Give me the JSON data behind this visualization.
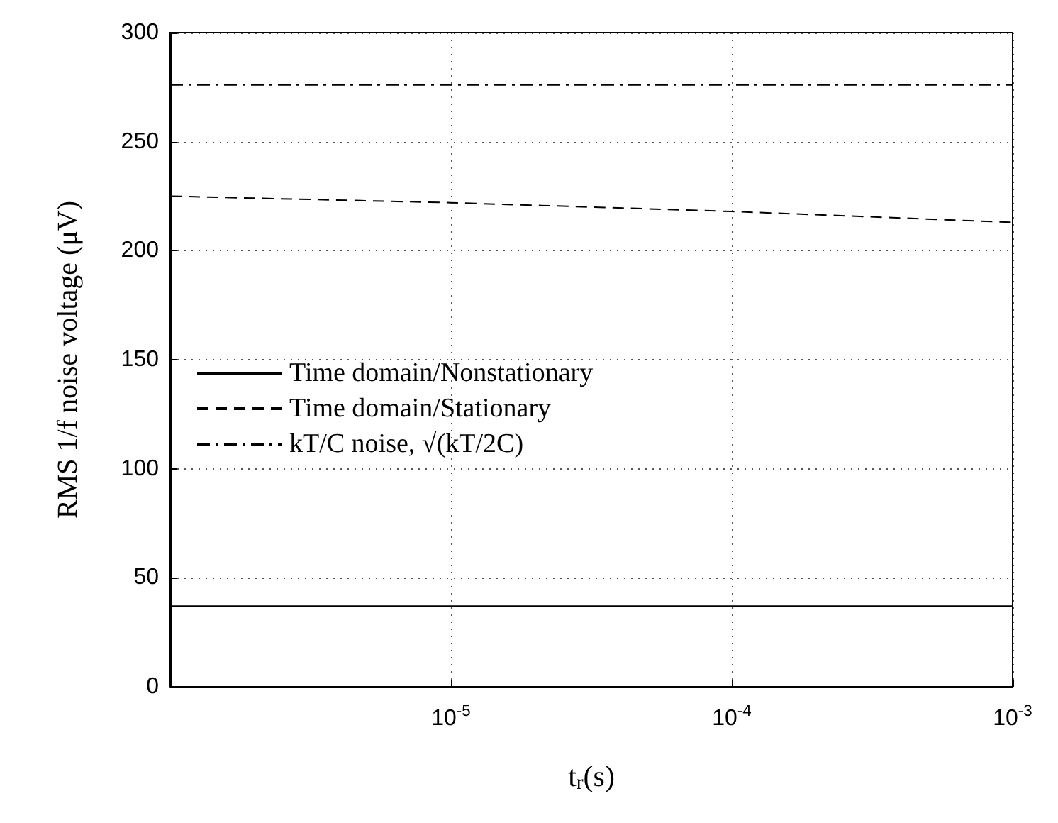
{
  "chart_data": {
    "type": "line",
    "xlabel": "t$_{r}$(s)",
    "ylabel": "RMS 1/f noise voltage (μV)",
    "x": [
      1e-06,
      1e-05,
      0.0001,
      0.001
    ],
    "series": [
      {
        "name": "Time domain/Nonstationary",
        "color": "#000000",
        "line_style": "solid",
        "values": [
          37,
          37,
          37,
          37
        ]
      },
      {
        "name": "Time domain/Stationary",
        "color": "#000000",
        "line_style": "dashed",
        "values": [
          225,
          222,
          218,
          213
        ]
      },
      {
        "name": "kT/C noise, √(kT/2C)",
        "color": "#000000",
        "line_style": "dashdot",
        "values": [
          276,
          276,
          276,
          276
        ]
      }
    ],
    "log": "x",
    "xlim": [
      1e-06,
      0.001
    ],
    "xticks": [
      {
        "value": 1e-05,
        "label": "10$^{-5}$"
      },
      {
        "value": 0.0001,
        "label": "10$^{-4}$"
      },
      {
        "value": 0.001,
        "label": "10$^{-3}$"
      }
    ],
    "ylim": [
      0,
      300
    ],
    "yticks": [
      0,
      50,
      100,
      150,
      200,
      250,
      300
    ],
    "grid": true,
    "legend": "left",
    "marker": "none"
  }
}
